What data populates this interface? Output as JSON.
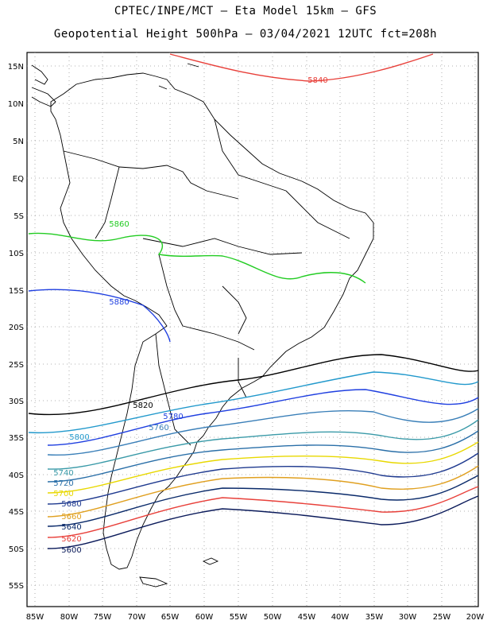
{
  "title_line1": "CPTEC/INPE/MCT –  Eta Model 15km – GFS",
  "title_line2": "Geopotential Height 500hPa – 03/04/2021 12UTC fct=208h",
  "lat_labels": [
    "15N",
    "10N",
    "5N",
    "EQ",
    "5S",
    "10S",
    "15S",
    "20S",
    "25S",
    "30S",
    "35S",
    "40S",
    "45S",
    "50S",
    "55S"
  ],
  "lon_labels": [
    "85W",
    "80W",
    "75W",
    "70W",
    "65W",
    "60W",
    "55W",
    "50W",
    "45W",
    "40W",
    "35W",
    "30W",
    "25W",
    "20W"
  ],
  "contours": [
    {
      "value": "5840",
      "color": "#e8403a"
    },
    {
      "value": "5860",
      "color": "#22cc22"
    },
    {
      "value": "5880",
      "color": "#1f3fe0"
    },
    {
      "value": "5820",
      "color": "#000000"
    },
    {
      "value": "5800",
      "color": "#2299cc"
    },
    {
      "value": "5780",
      "color": "#1f3fe0"
    },
    {
      "value": "5760",
      "color": "#3a7fb8"
    },
    {
      "value": "5740",
      "color": "#3a9aa8"
    },
    {
      "value": "5720",
      "color": "#2a6fa8"
    },
    {
      "value": "5700",
      "color": "#e8d800"
    },
    {
      "value": "5680",
      "color": "#1f3a8f"
    },
    {
      "value": "5660",
      "color": "#e0a020"
    },
    {
      "value": "5640",
      "color": "#0a2a6a"
    },
    {
      "value": "5620",
      "color": "#e8403a"
    },
    {
      "value": "5600",
      "color": "#0a1a5a"
    }
  ]
}
